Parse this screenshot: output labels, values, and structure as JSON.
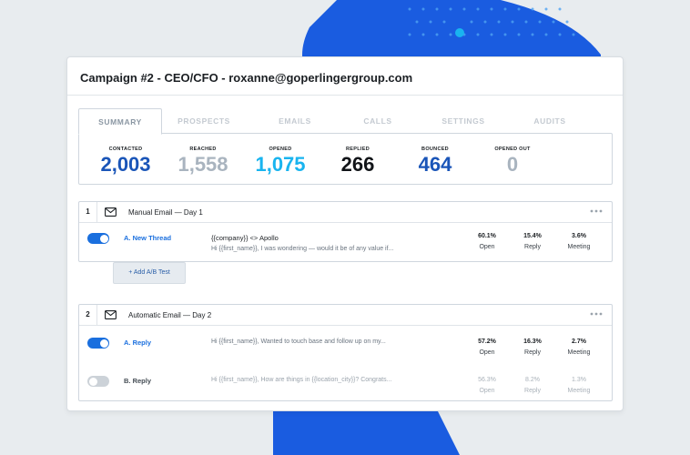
{
  "campaign": {
    "title": "Campaign #2 - CEO/CFO - roxanne@goperlingergroup.com"
  },
  "tabs": [
    "SUMMARY",
    "PROSPECTS",
    "EMAILS",
    "CALLS",
    "SETTINGS",
    "AUDITS"
  ],
  "stats": [
    {
      "label": "CONTACTED",
      "value": "2,003",
      "color": "#1a55b8"
    },
    {
      "label": "REACHED",
      "value": "1,558",
      "color": "#a9b4bf"
    },
    {
      "label": "OPENED",
      "value": "1,075",
      "color": "#19b4ef"
    },
    {
      "label": "REPLIED",
      "value": "266",
      "color": "#111418"
    },
    {
      "label": "BOUNCED",
      "value": "464",
      "color": "#1a55b8"
    },
    {
      "label": "OPENED OUT",
      "value": "0",
      "color": "#a9b4bf"
    }
  ],
  "steps": [
    {
      "number": "1",
      "title": "Manual Email — Day 1",
      "variants": [
        {
          "name": "A.  New Thread",
          "subject": "{{company}} <> Apollo",
          "preview": "Hi {{first_name}}, I was wondering — would it be of any value if...",
          "metrics": [
            {
              "value": "60.1%",
              "label": "Open"
            },
            {
              "value": "15.4%",
              "label": "Reply"
            },
            {
              "value": "3.6%",
              "label": "Meeting"
            }
          ]
        }
      ],
      "add_ab_label": "+ Add A/B Test"
    },
    {
      "number": "2",
      "title": "Automatic Email — Day 2",
      "variants": [
        {
          "name": "A.  Reply",
          "subject": "",
          "preview": "Hi {{first_name}}, Wanted to touch base and follow up on my...",
          "metrics": [
            {
              "value": "57.2%",
              "label": "Open"
            },
            {
              "value": "16.3%",
              "label": "Reply"
            },
            {
              "value": "2.7%",
              "label": "Meeting"
            }
          ]
        },
        {
          "name": "B.  Reply",
          "subject": "",
          "preview": "Hi {{first_name}}, How are things in {{location_city}}? Congrats...",
          "metrics": [
            {
              "value": "56.3%",
              "label": "Open"
            },
            {
              "value": "8.2%",
              "label": "Reply"
            },
            {
              "value": "1.3%",
              "label": "Meeting"
            }
          ]
        }
      ]
    }
  ],
  "colors": {
    "background_shape": "#1a5ce0",
    "dot_accent": "#19b4ef",
    "toggle_on": "#1a6fde",
    "toggle_off": "#ccd2d8"
  },
  "icons": [
    "mail-icon",
    "more-horizontal-icon"
  ]
}
